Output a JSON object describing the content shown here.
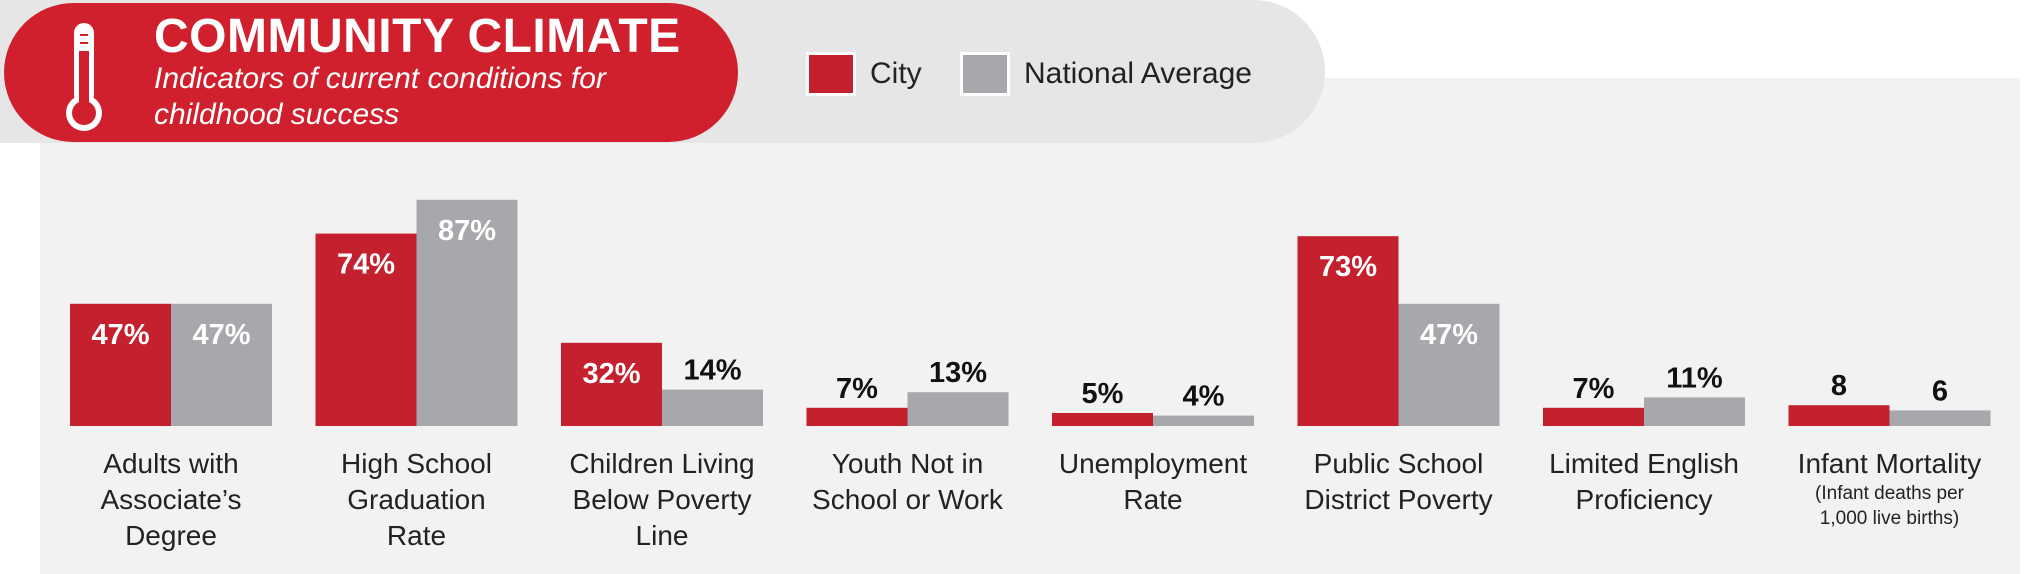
{
  "header": {
    "title": "COMMUNITY CLIMATE",
    "subtitle": "Indicators of current conditions for childhood success",
    "icon": "thermometer-icon"
  },
  "legend": [
    {
      "label": "City",
      "color": "#c4202e"
    },
    {
      "label": "National Average",
      "color": "#a7a8ab"
    }
  ],
  "chart_data": {
    "type": "bar",
    "categories": [
      {
        "label_lines": [
          "Adults with",
          "Associate’s",
          "Degree"
        ],
        "sub_lines": []
      },
      {
        "label_lines": [
          "High School",
          "Graduation",
          "Rate"
        ],
        "sub_lines": []
      },
      {
        "label_lines": [
          "Children Living",
          "Below Poverty",
          "Line"
        ],
        "sub_lines": []
      },
      {
        "label_lines": [
          "Youth Not in",
          "School or Work"
        ],
        "sub_lines": []
      },
      {
        "label_lines": [
          "Unemployment",
          "Rate"
        ],
        "sub_lines": []
      },
      {
        "label_lines": [
          "Public School",
          "District Poverty"
        ],
        "sub_lines": []
      },
      {
        "label_lines": [
          "Limited English",
          "Proficiency"
        ],
        "sub_lines": []
      },
      {
        "label_lines": [
          "Infant Mortality"
        ],
        "sub_lines": [
          "(Infant deaths per",
          "1,000 live births)"
        ]
      }
    ],
    "series": [
      {
        "name": "City",
        "color": "#c4202e",
        "values": [
          47,
          74,
          32,
          7,
          5,
          73,
          7,
          8
        ],
        "labels": [
          "47%",
          "74%",
          "32%",
          "7%",
          "5%",
          "73%",
          "7%",
          "8"
        ]
      },
      {
        "name": "National Average",
        "color": "#a7a8ab",
        "values": [
          47,
          87,
          14,
          13,
          4,
          47,
          11,
          6
        ],
        "labels": [
          "47%",
          "87%",
          "14%",
          "13%",
          "4%",
          "47%",
          "11%",
          "6"
        ]
      }
    ],
    "ylim": [
      0,
      87
    ],
    "grid": false,
    "legend_position": "top"
  }
}
